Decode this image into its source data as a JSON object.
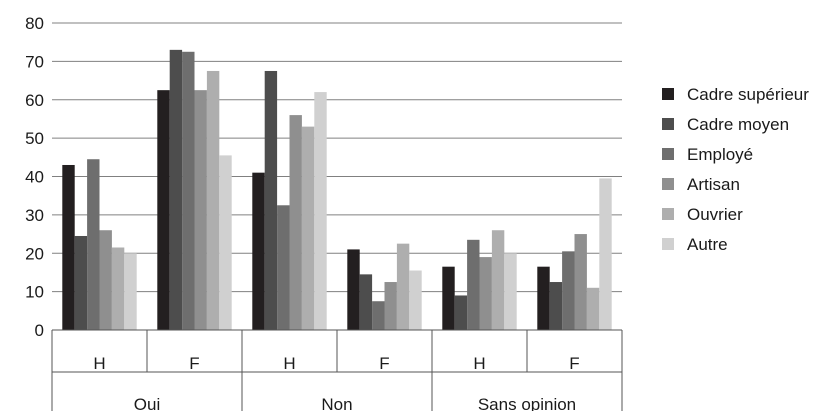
{
  "chart_data": {
    "type": "bar",
    "title": "",
    "xlabel": "",
    "ylabel": "",
    "ylim": [
      0,
      80
    ],
    "yticks": [
      0,
      10,
      20,
      30,
      40,
      50,
      60,
      70,
      80
    ],
    "grid": true,
    "legend_position": "right",
    "groups": [
      {
        "label": "Oui",
        "categories": [
          "H",
          "F"
        ]
      },
      {
        "label": "Non",
        "categories": [
          "H",
          "F"
        ]
      },
      {
        "label": "Sans opinion",
        "categories": [
          "H",
          "F"
        ]
      }
    ],
    "categories": [
      "H",
      "F",
      "H",
      "F",
      "H",
      "F"
    ],
    "series": [
      {
        "name": "Cadre supérieur",
        "color": "#231f20",
        "values": [
          43,
          62.5,
          41,
          21,
          16.5,
          16.5
        ]
      },
      {
        "name": "Cadre moyen",
        "color": "#4d4d4d",
        "values": [
          24.5,
          73,
          67.5,
          14.5,
          9,
          12.5
        ]
      },
      {
        "name": "Employé",
        "color": "#6e6e6e",
        "values": [
          44.5,
          72.5,
          32.5,
          7.5,
          23.5,
          20.5
        ]
      },
      {
        "name": "Artisan",
        "color": "#8f8f8f",
        "values": [
          26,
          62.5,
          56,
          12.5,
          19,
          25
        ]
      },
      {
        "name": "Ouvrier",
        "color": "#aeaeae",
        "values": [
          21.5,
          67.5,
          53,
          22.5,
          26,
          11
        ]
      },
      {
        "name": "Autre",
        "color": "#d0d0d0",
        "values": [
          20,
          45.5,
          62,
          15.5,
          20,
          39.5
        ]
      }
    ]
  }
}
